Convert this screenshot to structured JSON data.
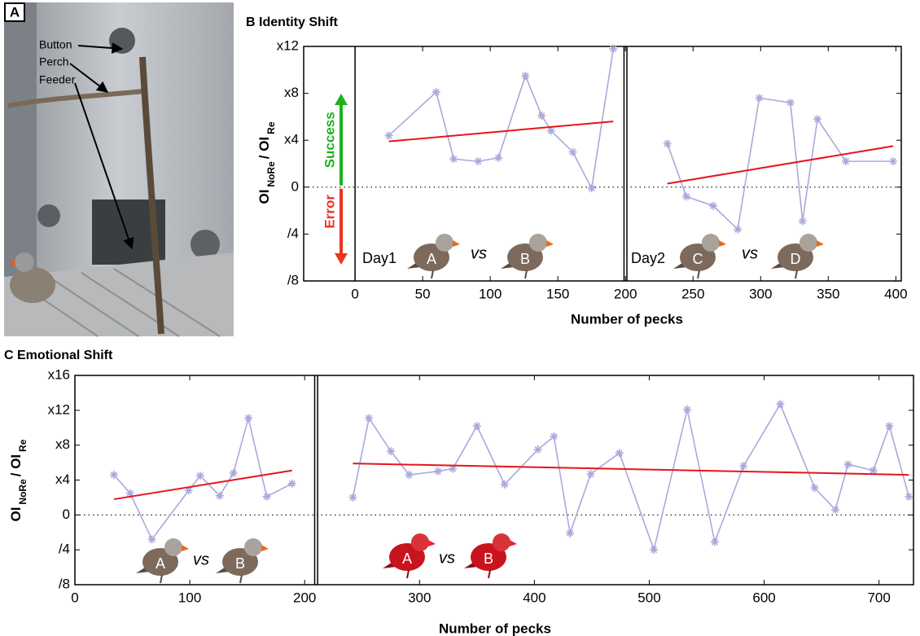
{
  "panel_a": {
    "label": "A",
    "labels": [
      "Button",
      "Perch",
      "Feeder"
    ]
  },
  "chart_data": [
    {
      "type": "line",
      "title": "B Identity Shift",
      "xlabel": "Number of pecks",
      "ylabel": [
        "OI",
        "NoRe",
        "/ OI",
        "Re"
      ],
      "xlim": [
        -38,
        404
      ],
      "ylim": [
        -8,
        12
      ],
      "xticks": [
        0,
        50,
        100,
        150,
        200,
        250,
        300,
        350,
        400
      ],
      "yticks": [
        {
          "value": -8,
          "label": "/8"
        },
        {
          "value": -4,
          "label": "/4"
        },
        0,
        {
          "value": 4,
          "label": "x4"
        },
        {
          "value": 8,
          "label": "x8"
        },
        {
          "value": 12,
          "label": "x12"
        }
      ],
      "color": "#a9a9dc",
      "fit_color": "#e8141b",
      "vlines": [
        0
      ],
      "dividers": [
        200
      ],
      "segments": [
        {
          "x": [
            25,
            60,
            73,
            91,
            106,
            126,
            138,
            145,
            161,
            175,
            191
          ],
          "values": [
            4.4,
            8.1,
            2.4,
            2.2,
            2.5,
            9.5,
            6.1,
            4.8,
            3.0,
            -0.1,
            11.8
          ]
        },
        {
          "x": [
            231,
            245,
            265,
            283,
            299,
            322,
            331,
            342,
            363,
            398
          ],
          "values": [
            3.7,
            -0.8,
            -1.6,
            -3.6,
            7.6,
            7.2,
            -2.9,
            5.8,
            2.2,
            2.2
          ]
        }
      ],
      "fits": [
        {
          "x": [
            25,
            191
          ],
          "values": [
            3.9,
            5.6
          ]
        },
        {
          "x": [
            231,
            398
          ],
          "values": [
            0.3,
            3.5
          ]
        }
      ],
      "arrows": {
        "up": "Success",
        "down": "Error"
      },
      "days": [
        "Day1",
        "Day2"
      ],
      "vs": [
        "vs",
        "vs"
      ],
      "birds": [
        "A",
        "B",
        "C",
        "D"
      ],
      "bird_color": "brown"
    },
    {
      "type": "line",
      "title": "C Emotional Shift",
      "xlabel": "Number of pecks",
      "ylabel": [
        "OI",
        "NoRe",
        "/ OI",
        "Re"
      ],
      "xlim": [
        0,
        730
      ],
      "ylim": [
        -8,
        16
      ],
      "xticks": [
        0,
        100,
        200,
        300,
        400,
        500,
        600,
        700
      ],
      "yticks": [
        {
          "value": -8,
          "label": "/8"
        },
        {
          "value": -4,
          "label": "/4"
        },
        0,
        {
          "value": 4,
          "label": "x4"
        },
        {
          "value": 8,
          "label": "x8"
        },
        {
          "value": 12,
          "label": "x12"
        },
        {
          "value": 16,
          "label": "x16"
        }
      ],
      "color": "#a9a9dc",
      "fit_color": "#e8141b",
      "vlines": [],
      "dividers": [
        210
      ],
      "segments": [
        {
          "x": [
            34,
            48,
            67,
            99,
            109,
            126,
            138,
            151,
            167,
            189
          ],
          "values": [
            4.6,
            2.5,
            -2.8,
            2.8,
            4.5,
            2.2,
            4.8,
            11.1,
            2.1,
            3.6
          ]
        },
        {
          "x": [
            242,
            256,
            275,
            291,
            316,
            329,
            350,
            374,
            403,
            417,
            431,
            449,
            474,
            504,
            533,
            557,
            582,
            614,
            644,
            662,
            673,
            695,
            709,
            726
          ],
          "values": [
            2.0,
            11.1,
            7.3,
            4.6,
            5.0,
            5.3,
            10.2,
            3.5,
            7.5,
            9.0,
            -2.1,
            4.7,
            7.1,
            -4.0,
            12.1,
            -3.1,
            5.6,
            12.7,
            3.1,
            0.6,
            5.8,
            5.1,
            10.2,
            2.1
          ]
        }
      ],
      "fits": [
        {
          "x": [
            34,
            189
          ],
          "values": [
            1.8,
            5.1
          ]
        },
        {
          "x": [
            242,
            726
          ],
          "values": [
            5.9,
            4.6
          ]
        }
      ],
      "vs": [
        "vs",
        "vs"
      ],
      "birds": [
        "A",
        "B",
        "A",
        "B"
      ],
      "bird_colors": [
        "brown",
        "brown",
        "red",
        "red"
      ]
    }
  ]
}
